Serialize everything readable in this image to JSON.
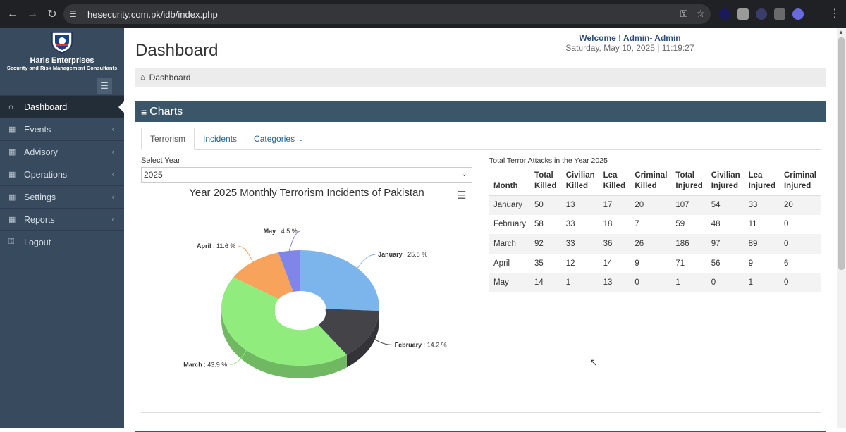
{
  "browser": {
    "url": "hesecurity.com.pk/idb/index.php",
    "icons": [
      "back-icon",
      "forward-icon",
      "reload-icon",
      "site-info-icon",
      "password-key-icon",
      "star-icon",
      "menu-icon"
    ]
  },
  "brand": {
    "name": "Haris Enterprises",
    "subtitle": "Security and Risk Management Consultants"
  },
  "sidebar": {
    "items": [
      {
        "label": "Dashboard",
        "icon": "home-icon",
        "active": true
      },
      {
        "label": "Events",
        "icon": "table-icon"
      },
      {
        "label": "Advisory",
        "icon": "table-icon"
      },
      {
        "label": "Operations",
        "icon": "table-icon"
      },
      {
        "label": "Settings",
        "icon": "table-icon"
      },
      {
        "label": "Reports",
        "icon": "table-icon"
      },
      {
        "label": "Logout",
        "icon": "key-icon"
      }
    ]
  },
  "header": {
    "title": "Dashboard",
    "welcome": "Welcome ! Admin- Admin",
    "datetime": "Saturday, May 10, 2025 | 11:19:27"
  },
  "breadcrumb": {
    "label": "Dashboard"
  },
  "panel": {
    "title": "Charts"
  },
  "tabs": [
    {
      "label": "Terrorism",
      "active": true
    },
    {
      "label": "Incidents"
    },
    {
      "label": "Categories"
    }
  ],
  "filter": {
    "label": "Select Year",
    "value": "2025"
  },
  "colors": {
    "sidebar": "#384a5e",
    "panel_header": "#3b5569",
    "link": "#2a6496"
  },
  "chart_data": {
    "type": "pie",
    "title": "Year 2025 Monthly Terrorism Incidents of Pakistan",
    "donut": true,
    "three_d": true,
    "slices": [
      {
        "name": "January",
        "value": 25.8,
        "color": "#7cb5ec"
      },
      {
        "name": "February",
        "value": 14.2,
        "color": "#434348"
      },
      {
        "name": "March",
        "value": 43.9,
        "color": "#90ed7d"
      },
      {
        "name": "April",
        "value": 11.6,
        "color": "#f7a35c"
      },
      {
        "name": "May",
        "value": 4.5,
        "color": "#8085e9"
      }
    ],
    "unit": "%"
  },
  "table": {
    "caption": "Total Terror Attacks in the Year 2025",
    "headers": [
      "Month",
      "Total Killed",
      "Civilian Killed",
      "Lea Killed",
      "Criminal Killed",
      "Total Injured",
      "Civilian Injured",
      "Lea Injured",
      "Criminal Injured"
    ],
    "rows": [
      [
        "January",
        "50",
        "13",
        "17",
        "20",
        "107",
        "54",
        "33",
        "20"
      ],
      [
        "February",
        "58",
        "33",
        "18",
        "7",
        "59",
        "48",
        "11",
        "0"
      ],
      [
        "March",
        "92",
        "33",
        "36",
        "26",
        "186",
        "97",
        "89",
        "0"
      ],
      [
        "April",
        "35",
        "12",
        "14",
        "9",
        "71",
        "56",
        "9",
        "6"
      ],
      [
        "May",
        "14",
        "1",
        "13",
        "0",
        "1",
        "0",
        "1",
        "0"
      ]
    ]
  }
}
